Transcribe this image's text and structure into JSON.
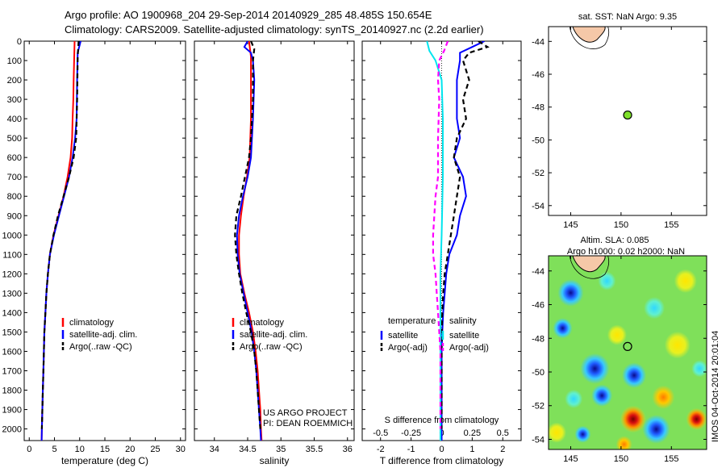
{
  "header": {
    "line1": "Argo profile: AO 1900968_204 29-Sep-2014 20140929_285 48.485S 150.654E",
    "line2": "Climatology: CARS2009. Satellite-adjusted climatology: synTS_20140927.nc (2.2d earlier)"
  },
  "side_stamp": "IMOS 04-Oct-2014 20:01:04",
  "colors": {
    "red": "#ff0000",
    "blue": "#0000ff",
    "black": "#000000",
    "cyan": "#00e5ee",
    "magenta": "#ff00ff",
    "marker": "#7ee02a"
  },
  "chart_data": [
    {
      "type": "line",
      "id": "temperature",
      "xlabel": "temperature (deg C)",
      "ylabel": "",
      "xlim": [
        -1,
        31
      ],
      "ylim": [
        2060,
        0
      ],
      "xticks": [
        0,
        5,
        10,
        15,
        20,
        25,
        30
      ],
      "yticks": [
        0,
        100,
        200,
        300,
        400,
        500,
        600,
        700,
        800,
        900,
        1000,
        1100,
        1200,
        1300,
        1400,
        1500,
        1600,
        1700,
        1800,
        1900,
        2000
      ],
      "legend": {
        "position": "lower-center",
        "entries": [
          "climatology",
          "satellite-adj. clim.",
          "Argo(..raw -QC)"
        ]
      },
      "series": [
        {
          "name": "climatology",
          "color": "red",
          "style": "solid",
          "points": [
            [
              9.0,
              0
            ],
            [
              8.9,
              100
            ],
            [
              8.8,
              200
            ],
            [
              8.75,
              300
            ],
            [
              8.6,
              400
            ],
            [
              8.5,
              500
            ],
            [
              8.2,
              600
            ],
            [
              7.6,
              700
            ],
            [
              6.8,
              800
            ],
            [
              5.8,
              900
            ],
            [
              4.8,
              1000
            ],
            [
              4.1,
              1100
            ],
            [
              3.7,
              1200
            ],
            [
              3.4,
              1300
            ],
            [
              3.2,
              1400
            ],
            [
              3.0,
              1500
            ],
            [
              2.9,
              1600
            ],
            [
              2.8,
              1700
            ],
            [
              2.7,
              1800
            ],
            [
              2.6,
              1900
            ],
            [
              2.5,
              2000
            ],
            [
              2.45,
              2060
            ]
          ]
        },
        {
          "name": "satellite-adj. clim.",
          "color": "blue",
          "style": "solid",
          "points": [
            [
              10.2,
              0
            ],
            [
              9.6,
              60
            ],
            [
              9.5,
              200
            ],
            [
              9.4,
              400
            ],
            [
              9.1,
              500
            ],
            [
              8.6,
              600
            ],
            [
              7.9,
              700
            ],
            [
              6.9,
              800
            ],
            [
              5.9,
              900
            ],
            [
              4.9,
              1000
            ],
            [
              4.1,
              1100
            ],
            [
              3.7,
              1200
            ],
            [
              3.4,
              1300
            ],
            [
              3.2,
              1400
            ],
            [
              3.0,
              1500
            ],
            [
              2.9,
              1600
            ],
            [
              2.8,
              1700
            ],
            [
              2.7,
              1800
            ],
            [
              2.6,
              1900
            ],
            [
              2.5,
              2000
            ],
            [
              2.45,
              2060
            ]
          ]
        },
        {
          "name": "Argo(..raw -QC)",
          "color": "black",
          "style": "dashed",
          "points": [
            [
              9.8,
              0
            ],
            [
              9.6,
              80
            ],
            [
              9.5,
              300
            ],
            [
              9.3,
              500
            ],
            [
              8.8,
              600
            ],
            [
              7.9,
              700
            ],
            [
              6.8,
              800
            ],
            [
              5.7,
              900
            ],
            [
              4.8,
              1000
            ],
            [
              4.1,
              1100
            ],
            [
              3.7,
              1200
            ],
            [
              3.4,
              1300
            ],
            [
              3.2,
              1400
            ],
            [
              3.0,
              1500
            ],
            [
              2.9,
              1600
            ],
            [
              2.8,
              1700
            ],
            [
              2.7,
              1800
            ],
            [
              2.6,
              1900
            ],
            [
              2.5,
              2000
            ]
          ]
        }
      ]
    },
    {
      "type": "line",
      "id": "salinity",
      "xlabel": "salinity",
      "ylabel": "",
      "xlim": [
        33.7,
        36.1
      ],
      "ylim": [
        2060,
        0
      ],
      "xticks": [
        34,
        34.5,
        35,
        35.5,
        36
      ],
      "xticklabels": [
        "34",
        "34.5",
        "35",
        "35.5",
        "36"
      ],
      "legend": {
        "position": "lower-center",
        "entries": [
          "climatology",
          "satellite-adj. clim.",
          "Argo(..raw -QC)"
        ]
      },
      "annotation": [
        "US ARGO PROJECT",
        "PI: DEAN ROEMMICH"
      ],
      "series": [
        {
          "name": "climatology",
          "color": "red",
          "style": "solid",
          "points": [
            [
              34.52,
              0
            ],
            [
              34.55,
              80
            ],
            [
              34.55,
              200
            ],
            [
              34.55,
              400
            ],
            [
              34.53,
              600
            ],
            [
              34.49,
              700
            ],
            [
              34.44,
              800
            ],
            [
              34.4,
              900
            ],
            [
              34.37,
              1000
            ],
            [
              34.37,
              1100
            ],
            [
              34.39,
              1200
            ],
            [
              34.45,
              1300
            ],
            [
              34.52,
              1400
            ],
            [
              34.58,
              1500
            ],
            [
              34.62,
              1600
            ],
            [
              34.65,
              1700
            ],
            [
              34.67,
              1800
            ],
            [
              34.69,
              1900
            ],
            [
              34.7,
              2000
            ],
            [
              34.71,
              2060
            ]
          ]
        },
        {
          "name": "satellite-adj. clim.",
          "color": "blue",
          "style": "solid",
          "points": [
            [
              34.5,
              0
            ],
            [
              34.45,
              30
            ],
            [
              34.55,
              60
            ],
            [
              34.58,
              100
            ],
            [
              34.6,
              200
            ],
            [
              34.58,
              400
            ],
            [
              34.55,
              600
            ],
            [
              34.5,
              700
            ],
            [
              34.43,
              800
            ],
            [
              34.37,
              900
            ],
            [
              34.34,
              1000
            ],
            [
              34.35,
              1100
            ],
            [
              34.38,
              1200
            ],
            [
              34.44,
              1300
            ],
            [
              34.5,
              1400
            ],
            [
              34.56,
              1500
            ],
            [
              34.6,
              1600
            ],
            [
              34.63,
              1700
            ],
            [
              34.65,
              1800
            ],
            [
              34.67,
              1900
            ],
            [
              34.69,
              2000
            ],
            [
              34.7,
              2060
            ]
          ]
        },
        {
          "name": "Argo(..raw -QC)",
          "color": "black",
          "style": "dashed",
          "points": [
            [
              34.55,
              0
            ],
            [
              34.6,
              40
            ],
            [
              34.58,
              100
            ],
            [
              34.58,
              300
            ],
            [
              34.55,
              500
            ],
            [
              34.52,
              600
            ],
            [
              34.46,
              700
            ],
            [
              34.4,
              800
            ],
            [
              34.33,
              900
            ],
            [
              34.31,
              1000
            ],
            [
              34.33,
              1100
            ],
            [
              34.37,
              1200
            ],
            [
              34.42,
              1300
            ],
            [
              34.48,
              1400
            ],
            [
              34.55,
              1500
            ],
            [
              34.6,
              1600
            ],
            [
              34.63,
              1700
            ],
            [
              34.65,
              1800
            ],
            [
              34.67,
              1900
            ],
            [
              34.69,
              2000
            ]
          ]
        }
      ]
    },
    {
      "type": "line",
      "id": "difference",
      "xlabel": "T difference from climatology",
      "xlabel_top": "S difference from climatology",
      "ylabel": "",
      "xlim": [
        -2.6,
        2.6
      ],
      "ylim": [
        2060,
        0
      ],
      "xticks": [
        -2,
        -1,
        0,
        1,
        2
      ],
      "xticks_top": [
        -0.5,
        -0.25,
        0,
        0.25,
        0.5
      ],
      "xticklabels_top": [
        "-0.5",
        "-0.25",
        "0",
        "0.25",
        "0.5"
      ],
      "legend": {
        "position": "lower-center",
        "groups": [
          {
            "title": "temperature",
            "entries": [
              "satellite",
              "Argo(-adj)"
            ]
          },
          {
            "title": "salinity",
            "entries": [
              "satellite",
              "Argo(-adj)"
            ]
          }
        ]
      },
      "series": [
        {
          "name": "temperature satellite",
          "color": "blue",
          "style": "solid",
          "points": [
            [
              1.4,
              0
            ],
            [
              1.0,
              30
            ],
            [
              0.6,
              60
            ],
            [
              0.6,
              100
            ],
            [
              0.5,
              200
            ],
            [
              0.5,
              300
            ],
            [
              0.5,
              400
            ],
            [
              0.6,
              500
            ],
            [
              0.4,
              600
            ],
            [
              0.7,
              700
            ],
            [
              0.8,
              800
            ],
            [
              0.6,
              900
            ],
            [
              0.5,
              1000
            ],
            [
              0.25,
              1100
            ],
            [
              0.15,
              1200
            ],
            [
              0.1,
              1300
            ],
            [
              0.05,
              1400
            ],
            [
              0.02,
              1500
            ],
            [
              0.0,
              1600
            ],
            [
              0.0,
              1800
            ],
            [
              0.0,
              2000
            ],
            [
              0.0,
              2060
            ]
          ]
        },
        {
          "name": "temperature Argo(-adj)",
          "color": "black",
          "style": "dashed",
          "points": [
            [
              1.2,
              0
            ],
            [
              1.5,
              30
            ],
            [
              0.9,
              60
            ],
            [
              0.7,
              100
            ],
            [
              0.9,
              200
            ],
            [
              0.7,
              300
            ],
            [
              0.8,
              400
            ],
            [
              0.5,
              500
            ],
            [
              0.4,
              600
            ],
            [
              0.6,
              700
            ],
            [
              0.5,
              800
            ],
            [
              0.4,
              900
            ],
            [
              0.3,
              1000
            ],
            [
              0.2,
              1100
            ],
            [
              0.1,
              1200
            ],
            [
              0.05,
              1300
            ],
            [
              0.02,
              1400
            ],
            [
              0.0,
              1500
            ],
            [
              0.0,
              1700
            ],
            [
              0.0,
              2000
            ]
          ]
        },
        {
          "name": "salinity satellite",
          "color": "cyan",
          "style": "solid",
          "points": [
            [
              -0.12,
              0
            ],
            [
              -0.1,
              50
            ],
            [
              -0.05,
              100
            ],
            [
              0.0,
              200
            ],
            [
              0.01,
              400
            ],
            [
              0.01,
              700
            ],
            [
              0.0,
              1000
            ],
            [
              -0.01,
              1200
            ],
            [
              -0.01,
              1400
            ],
            [
              -0.01,
              1600
            ],
            [
              -0.01,
              1800
            ],
            [
              -0.01,
              2000
            ],
            [
              -0.01,
              2060
            ]
          ]
        },
        {
          "name": "salinity Argo(-adj)",
          "color": "magenta",
          "style": "dashed",
          "points": [
            [
              0.05,
              0
            ],
            [
              0.02,
              50
            ],
            [
              -0.02,
              100
            ],
            [
              -0.03,
              200
            ],
            [
              -0.02,
              300
            ],
            [
              -0.03,
              500
            ],
            [
              -0.03,
              700
            ],
            [
              -0.05,
              800
            ],
            [
              -0.06,
              900
            ],
            [
              -0.07,
              1000
            ],
            [
              -0.07,
              1100
            ],
            [
              -0.05,
              1200
            ],
            [
              -0.04,
              1300
            ],
            [
              -0.03,
              1400
            ],
            [
              -0.02,
              1500
            ],
            [
              -0.01,
              1600
            ],
            [
              -0.01,
              1700
            ],
            [
              -0.01,
              1800
            ],
            [
              -0.01,
              2000
            ]
          ]
        }
      ]
    },
    {
      "type": "map",
      "id": "sst-map",
      "title": "sat. SST: NaN Argo: 9.35",
      "xlim": [
        142.8,
        158.5
      ],
      "ylim": [
        -54.6,
        -43.1
      ],
      "xticks": [
        145,
        150,
        155
      ],
      "yticks": [
        -44,
        -46,
        -48,
        -50,
        -52,
        -54
      ],
      "marker": {
        "lon": 150.654,
        "lat": -48.485
      }
    },
    {
      "type": "heatmap",
      "id": "sla-map",
      "title": [
        "Altim. SLA: 0.085",
        "Argo h1000: 0.02 h2000: NaN"
      ],
      "xlim": [
        142.8,
        158.5
      ],
      "ylim": [
        -54.6,
        -43.1
      ],
      "xticks": [
        145,
        150,
        155
      ],
      "yticks": [
        -44,
        -46,
        -48,
        -50,
        -52,
        -54
      ],
      "marker": {
        "lon": 150.654,
        "lat": -48.485
      }
    }
  ]
}
